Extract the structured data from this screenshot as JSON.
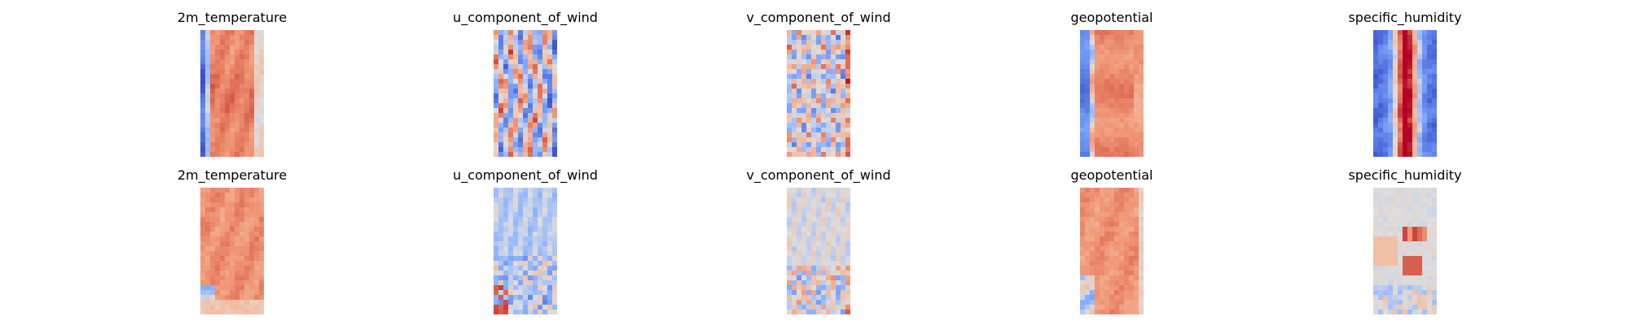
{
  "chart_data": {
    "type": "heatmap",
    "colormap": "coolwarm",
    "grid": false,
    "axes": "off",
    "layout": {
      "rows": 2,
      "cols": 5
    },
    "panels": [
      {
        "row": 0,
        "col": 0,
        "title": "2m_temperature",
        "pattern": "temp_row1"
      },
      {
        "row": 0,
        "col": 1,
        "title": "u_component_of_wind",
        "pattern": "uwind_row1"
      },
      {
        "row": 0,
        "col": 2,
        "title": "v_component_of_wind",
        "pattern": "vwind_row1"
      },
      {
        "row": 0,
        "col": 3,
        "title": "geopotential",
        "pattern": "geo_row1"
      },
      {
        "row": 0,
        "col": 4,
        "title": "specific_humidity",
        "pattern": "hum_row1"
      },
      {
        "row": 1,
        "col": 0,
        "title": "2m_temperature",
        "pattern": "temp_row2"
      },
      {
        "row": 1,
        "col": 1,
        "title": "u_component_of_wind",
        "pattern": "uwind_row2"
      },
      {
        "row": 1,
        "col": 2,
        "title": "v_component_of_wind",
        "pattern": "vwind_row2"
      },
      {
        "row": 1,
        "col": 3,
        "title": "geopotential",
        "pattern": "geo_row2"
      },
      {
        "row": 1,
        "col": 4,
        "title": "specific_humidity",
        "pattern": "hum_row2"
      }
    ]
  }
}
